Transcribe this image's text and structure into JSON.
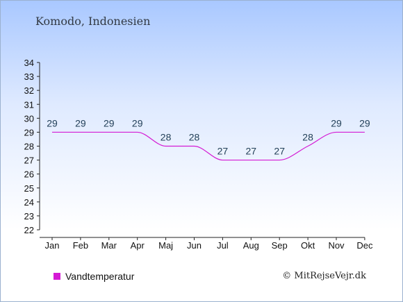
{
  "page": {
    "title": "Komodo, Indonesien",
    "credit": "© MitRejseVejr.dk"
  },
  "legend": {
    "label": "Vandtemperatur",
    "color": "#d41ad4"
  },
  "chart_data": {
    "type": "line",
    "title": "Komodo, Indonesien",
    "categories": [
      "Jan",
      "Feb",
      "Mar",
      "Apr",
      "Maj",
      "Jun",
      "Jul",
      "Aug",
      "Sep",
      "Okt",
      "Nov",
      "Dec"
    ],
    "series": [
      {
        "name": "Vandtemperatur",
        "values": [
          29,
          29,
          29,
          29,
          28,
          28,
          27,
          27,
          27,
          28,
          29,
          29
        ],
        "color": "#d41ad4"
      }
    ],
    "data_labels": [
      "29",
      "29",
      "29",
      "29",
      "28",
      "28",
      "27",
      "27",
      "27",
      "28",
      "29",
      "29"
    ],
    "ylim": [
      22,
      34
    ],
    "yticks": [
      "22",
      "23",
      "24",
      "25",
      "26",
      "27",
      "28",
      "29",
      "30",
      "31",
      "32",
      "33",
      "34"
    ],
    "grid": false,
    "legend_position": "bottom-left"
  }
}
